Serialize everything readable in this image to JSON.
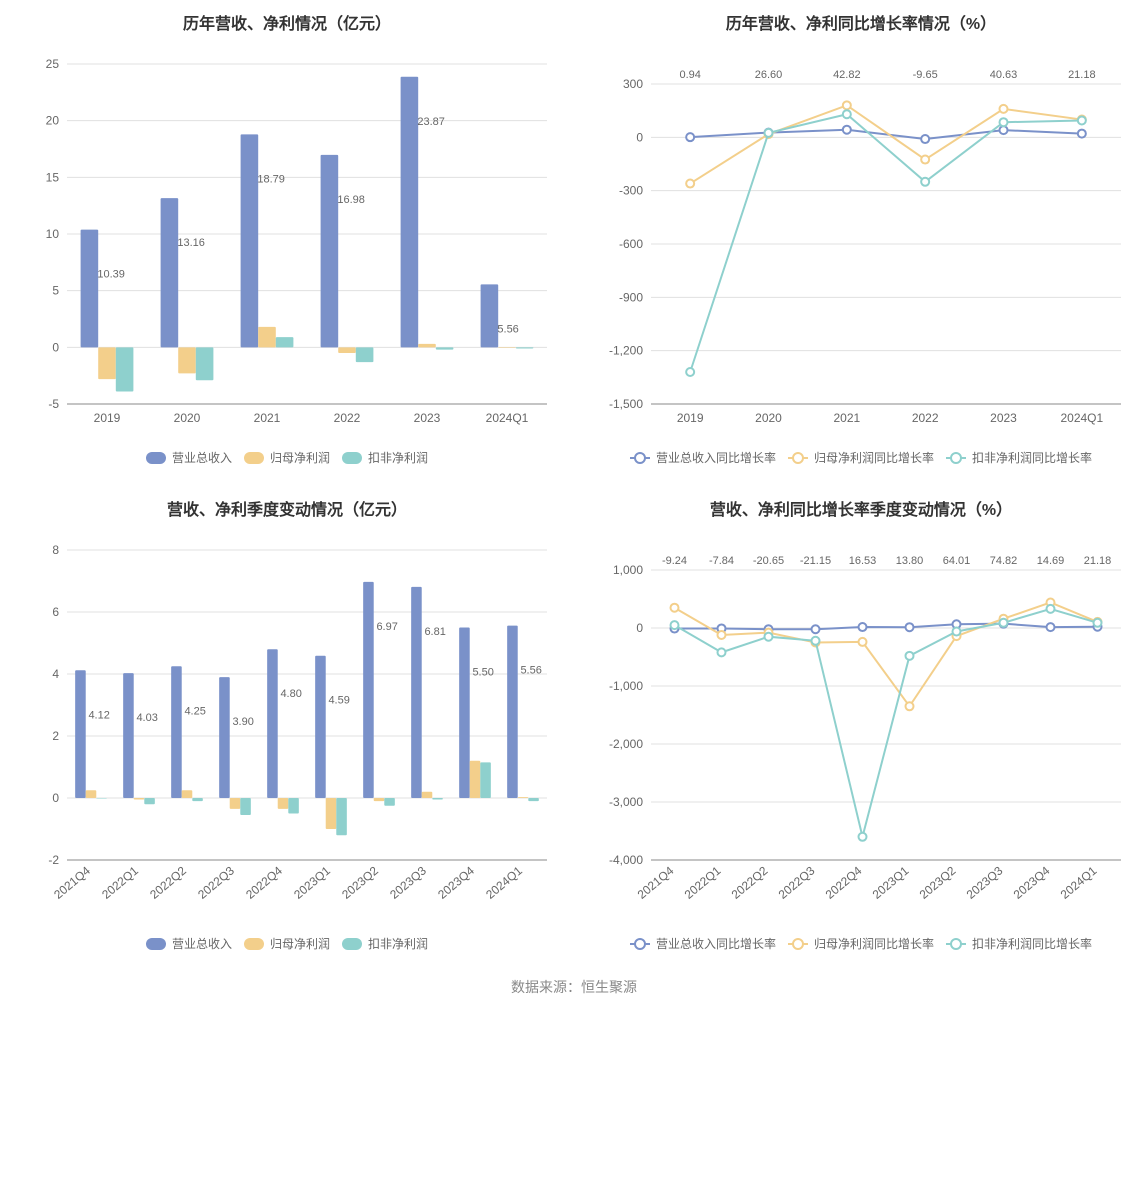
{
  "colors": {
    "series1": "#7a91c9",
    "series2": "#f3cf8b",
    "series3": "#8ed0cd",
    "grid": "#e0e0e0",
    "axis": "#888888",
    "text": "#666666",
    "title": "#333333",
    "background": "#ffffff"
  },
  "font": {
    "title_size": 16,
    "label_size": 12,
    "tick_size": 12,
    "datalabel_size": 11
  },
  "footer_text": "数据来源：恒生聚源",
  "legend_bar": [
    "营业总收入",
    "归母净利润",
    "扣非净利润"
  ],
  "legend_line": [
    "营业总收入同比增长率",
    "归母净利润同比增长率",
    "扣非净利润同比增长率"
  ],
  "chart1": {
    "type": "bar",
    "title": "历年营收、净利情况（亿元）",
    "categories": [
      "2019",
      "2020",
      "2021",
      "2022",
      "2023",
      "2024Q1"
    ],
    "series": [
      {
        "name": "营业总收入",
        "values": [
          10.39,
          13.16,
          18.79,
          16.98,
          23.87,
          5.56
        ],
        "labels": [
          "10.39",
          "13.16",
          "18.79",
          "16.98",
          "23.87",
          "5.56"
        ]
      },
      {
        "name": "归母净利润",
        "values": [
          -2.8,
          -2.3,
          1.8,
          -0.5,
          0.3,
          0.0
        ]
      },
      {
        "name": "扣非净利润",
        "values": [
          -3.9,
          -2.9,
          0.9,
          -1.3,
          -0.2,
          -0.1
        ]
      }
    ],
    "ylim": [
      -5,
      25
    ],
    "ytick_step": 5,
    "bar_width": 0.22,
    "group_gap": 0.15
  },
  "chart2": {
    "type": "line",
    "title": "历年营收、净利同比增长率情况（%）",
    "categories": [
      "2019",
      "2020",
      "2021",
      "2022",
      "2023",
      "2024Q1"
    ],
    "labels_top": [
      "0.94",
      "26.60",
      "42.82",
      "-9.65",
      "40.63",
      "21.18"
    ],
    "series": [
      {
        "name": "营业总收入同比增长率",
        "values": [
          0.94,
          26.6,
          42.82,
          -9.65,
          40.63,
          21.18
        ]
      },
      {
        "name": "归母净利润同比增长率",
        "values": [
          -260,
          18,
          180,
          -125,
          160,
          100
        ]
      },
      {
        "name": "扣非净利润同比增长率",
        "values": [
          -1320,
          25,
          130,
          -250,
          85,
          95
        ]
      }
    ],
    "ylim": [
      -1500,
      300
    ],
    "ytick_step": 300
  },
  "chart3": {
    "type": "bar",
    "title": "营收、净利季度变动情况（亿元）",
    "categories": [
      "2021Q4",
      "2022Q1",
      "2022Q2",
      "2022Q3",
      "2022Q4",
      "2023Q1",
      "2023Q2",
      "2023Q3",
      "2023Q4",
      "2024Q1"
    ],
    "series": [
      {
        "name": "营业总收入",
        "values": [
          4.12,
          4.03,
          4.25,
          3.9,
          4.8,
          4.59,
          6.97,
          6.81,
          5.5,
          5.56
        ],
        "labels": [
          "4.12",
          "4.03",
          "4.25",
          "3.90",
          "4.80",
          "4.59",
          "6.97",
          "6.81",
          "5.50",
          "5.56"
        ]
      },
      {
        "name": "归母净利润",
        "values": [
          0.25,
          -0.05,
          0.25,
          -0.35,
          -0.35,
          -1.0,
          -0.1,
          0.2,
          1.2,
          0.03
        ]
      },
      {
        "name": "扣非净利润",
        "values": [
          0.0,
          -0.2,
          -0.1,
          -0.55,
          -0.5,
          -1.2,
          -0.25,
          -0.05,
          1.15,
          -0.1
        ]
      }
    ],
    "ylim": [
      -2,
      8
    ],
    "ytick_step": 2,
    "bar_width": 0.22,
    "rotate_xlabels": true
  },
  "chart4": {
    "type": "line",
    "title": "营收、净利同比增长率季度变动情况（%）",
    "categories": [
      "2021Q4",
      "2022Q1",
      "2022Q2",
      "2022Q3",
      "2022Q4",
      "2023Q1",
      "2023Q2",
      "2023Q3",
      "2023Q4",
      "2024Q1"
    ],
    "labels_top": [
      "-9.24",
      "-7.84",
      "-20.65",
      "-21.15",
      "16.53",
      "13.80",
      "64.01",
      "74.82",
      "14.69",
      "21.18"
    ],
    "series": [
      {
        "name": "营业总收入同比增长率",
        "values": [
          -9.24,
          -7.84,
          -20.65,
          -21.15,
          16.53,
          13.8,
          64.01,
          74.82,
          14.69,
          21.18
        ]
      },
      {
        "name": "归母净利润同比增长率",
        "values": [
          350,
          -120,
          -80,
          -250,
          -240,
          -1350,
          -140,
          160,
          440,
          105
        ]
      },
      {
        "name": "扣非净利润同比增长率",
        "values": [
          50,
          -420,
          -150,
          -220,
          -3600,
          -480,
          -60,
          90,
          330,
          90
        ]
      }
    ],
    "ylim": [
      -4000,
      1000
    ],
    "ytick_step": 1000,
    "rotate_xlabels": true
  }
}
